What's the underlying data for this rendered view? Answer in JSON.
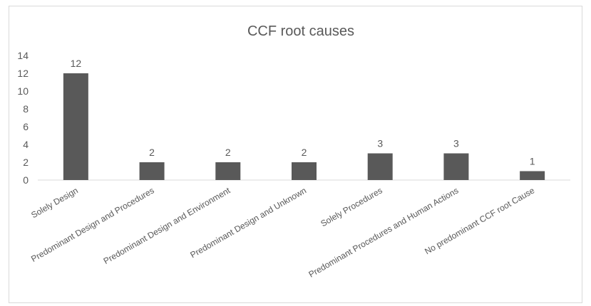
{
  "chart_data": {
    "type": "bar",
    "title": "CCF root causes",
    "xlabel": "",
    "ylabel": "",
    "categories": [
      "Solely Design",
      "Predominant Design and Procedures",
      "Predominant Design and Environment",
      "Predominant Design and Unknown",
      "Solely Procedures",
      "Predominant Procedures and Human Actions",
      "No predominant CCF root Cause"
    ],
    "values": [
      12,
      2,
      2,
      2,
      3,
      3,
      1
    ],
    "data_labels": [
      "12",
      "2",
      "2",
      "2",
      "3",
      "3",
      "1"
    ],
    "ylim": [
      0,
      14
    ],
    "yticks": [
      0,
      2,
      4,
      6,
      8,
      10,
      12,
      14
    ],
    "grid": false,
    "legend": "none",
    "bar_color": "#595959",
    "text_color": "#595959",
    "axis_color": "#d9d9d9"
  }
}
